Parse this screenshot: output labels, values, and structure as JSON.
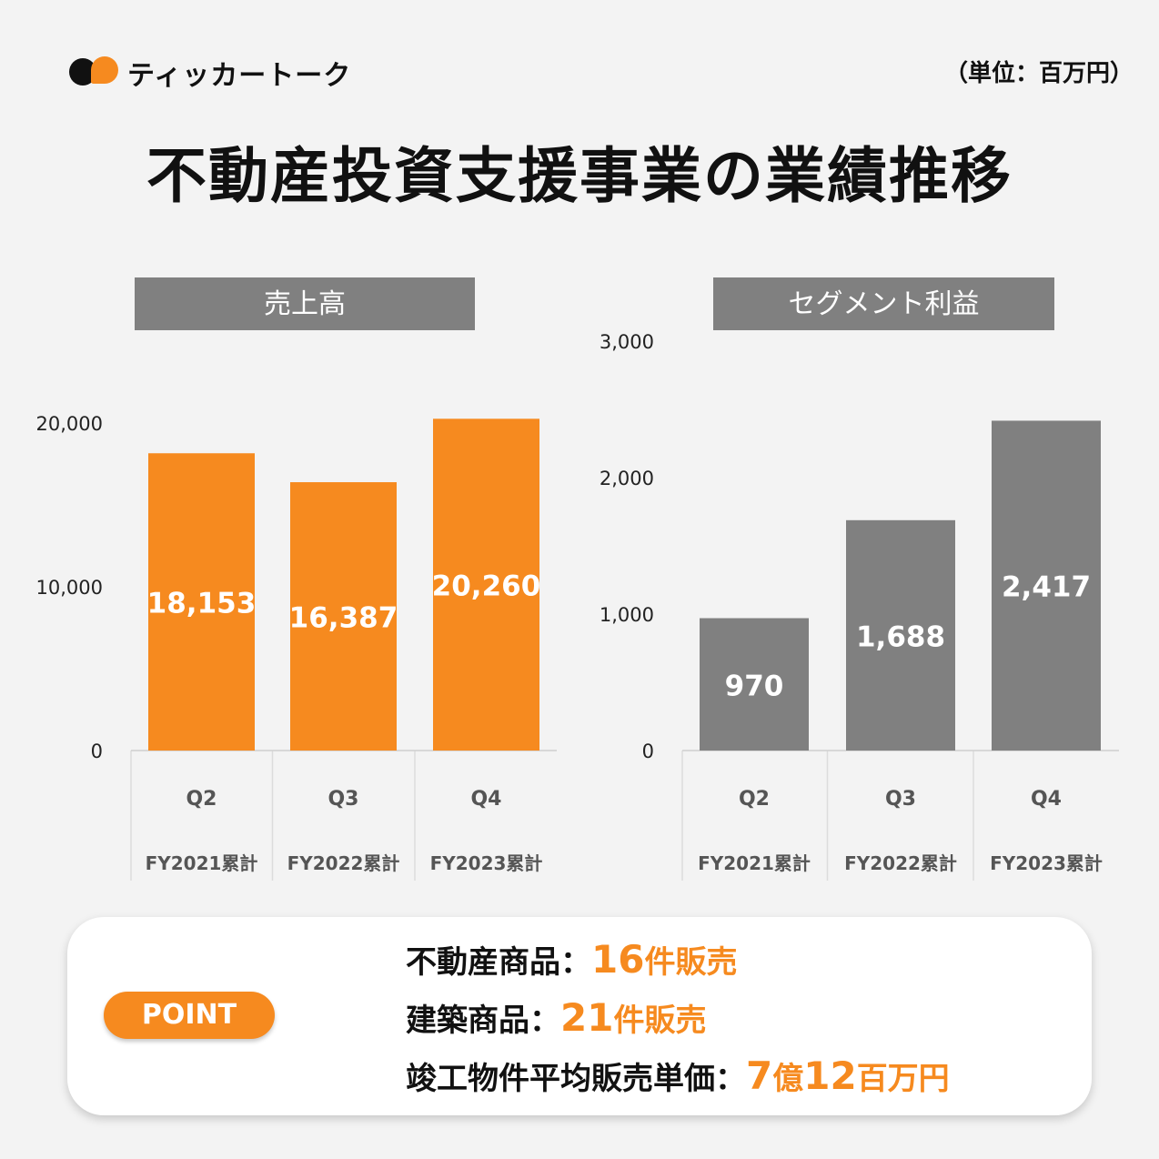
{
  "brand": {
    "name": "ティッカートーク",
    "icon": "speech-bubble-logo-icon"
  },
  "unit_label": "（単位：百万円）",
  "title": "不動産投資支援事業の業績推移",
  "colors": {
    "orange": "#f68a1f",
    "gray": "#808080",
    "header_gray": "#808080",
    "background": "#f3f3f3"
  },
  "chart_data": [
    {
      "type": "bar",
      "title": "売上高",
      "categories": [
        "Q2",
        "Q3",
        "Q4"
      ],
      "sub_labels": [
        "FY2021累計",
        "FY2022累計",
        "FY2023累計"
      ],
      "values": [
        18153,
        16387,
        20260
      ],
      "value_labels": [
        "18,153",
        "16,387",
        "20,260"
      ],
      "ylim": [
        0,
        20000
      ],
      "yticks": [
        0,
        10000,
        20000
      ],
      "ytick_labels": [
        "0",
        "10,000",
        "20,000"
      ],
      "color": "#f68a1f",
      "grid": false
    },
    {
      "type": "bar",
      "title": "セグメント利益",
      "categories": [
        "Q2",
        "Q3",
        "Q4"
      ],
      "sub_labels": [
        "FY2021累計",
        "FY2022累計",
        "FY2023累計"
      ],
      "values": [
        970,
        1688,
        2417
      ],
      "value_labels": [
        "970",
        "1,688",
        "2,417"
      ],
      "ylim": [
        0,
        3000
      ],
      "yticks": [
        0,
        1000,
        2000,
        3000
      ],
      "ytick_labels": [
        "0",
        "1,000",
        "2,000",
        "3,000"
      ],
      "color": "#808080",
      "grid": false
    }
  ],
  "point": {
    "badge": "POINT",
    "items": [
      {
        "label": "不動産商品：",
        "number": "16",
        "suffix": "件販売"
      },
      {
        "label": "建築商品：",
        "number": "21",
        "suffix": "件販売"
      },
      {
        "label": "竣工物件平均販売単価：",
        "number": "7",
        "suffix": "億",
        "number2": "12",
        "suffix2": "百万円"
      }
    ]
  }
}
